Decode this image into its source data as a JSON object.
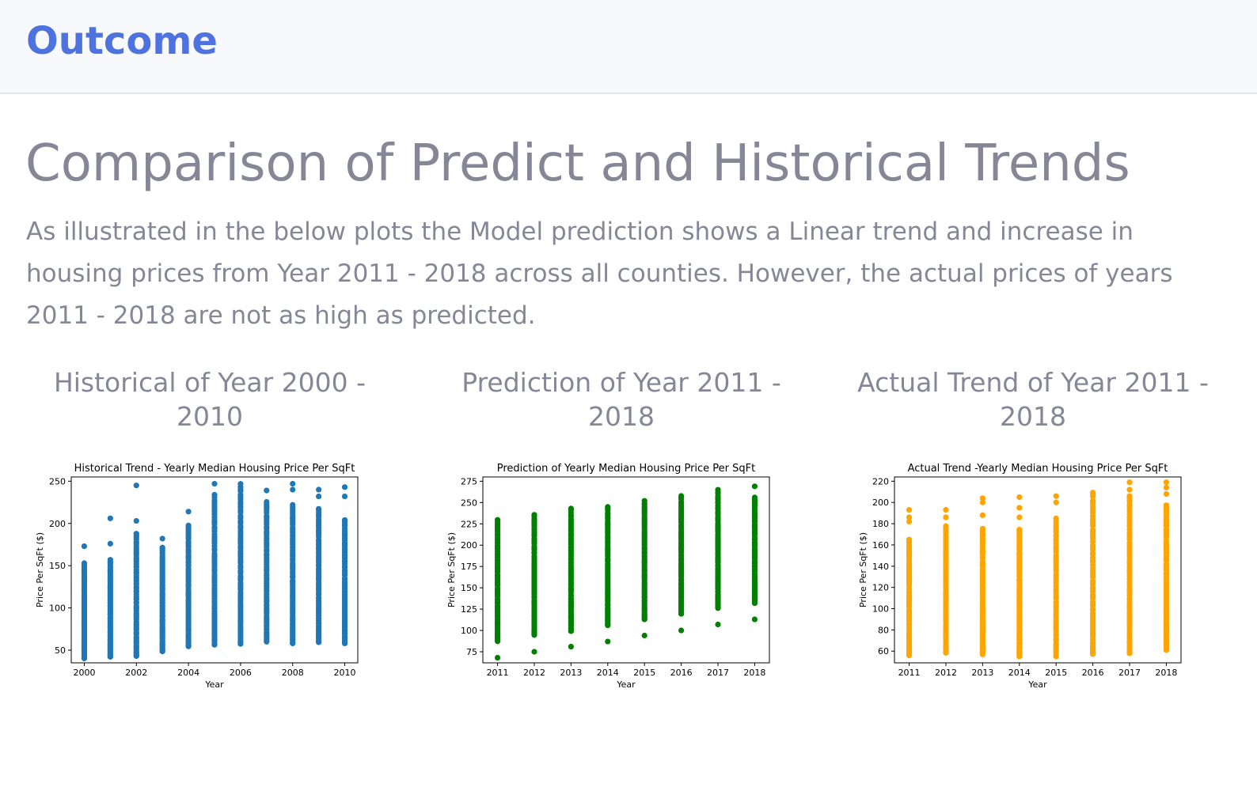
{
  "header": {
    "brand": "Outcome"
  },
  "main": {
    "title": "Comparison of Predict and Historical Trends",
    "description": "As illustrated in the below plots the Model prediction shows a Linear trend and increase in housing prices from Year 2011 - 2018 across all counties. However, the actual prices of years 2011 - 2018 are not as high as predicted.",
    "panels": [
      {
        "heading": "Historical of Year 2000 - 2010"
      },
      {
        "heading": "Prediction of Year 2011 - 2018"
      },
      {
        "heading": "Actual Trend of Year 2011 - 2018"
      }
    ]
  },
  "chart_data": [
    {
      "type": "scatter",
      "title": "Historical Trend - Yearly Median Housing Price Per SqFt",
      "xlabel": "Year",
      "ylabel": "Price Per SqFt ($)",
      "xlim": [
        1999.5,
        2010.5
      ],
      "ylim": [
        35,
        255
      ],
      "xticks": [
        2000,
        2002,
        2004,
        2006,
        2008,
        2010
      ],
      "yticks": [
        50,
        100,
        150,
        200,
        250
      ],
      "color": "#1f77b4",
      "series": [
        {
          "x": 2000,
          "min": 40,
          "max": 153,
          "extra": [
            173
          ]
        },
        {
          "x": 2001,
          "min": 42,
          "max": 157,
          "extra": [
            176,
            206
          ]
        },
        {
          "x": 2002,
          "min": 43,
          "max": 188,
          "extra": [
            203,
            245
          ]
        },
        {
          "x": 2003,
          "min": 48,
          "max": 172,
          "extra": [
            182
          ]
        },
        {
          "x": 2004,
          "min": 54,
          "max": 198,
          "extra": [
            214
          ]
        },
        {
          "x": 2005,
          "min": 56,
          "max": 234,
          "extra": [
            247
          ]
        },
        {
          "x": 2006,
          "min": 57,
          "max": 247,
          "extra": []
        },
        {
          "x": 2007,
          "min": 60,
          "max": 226,
          "extra": [
            239
          ]
        },
        {
          "x": 2008,
          "min": 58,
          "max": 222,
          "extra": [
            240,
            247
          ]
        },
        {
          "x": 2009,
          "min": 59,
          "max": 218,
          "extra": [
            232,
            240
          ]
        },
        {
          "x": 2010,
          "min": 58,
          "max": 204,
          "extra": [
            232,
            243
          ]
        }
      ]
    },
    {
      "type": "scatter",
      "title": "Prediction of Yearly Median Housing Price Per SqFt",
      "xlabel": "Year",
      "ylabel": "Price Per SqFt ($)",
      "xlim": [
        2010.6,
        2018.4
      ],
      "ylim": [
        62,
        280
      ],
      "xticks": [
        2011,
        2012,
        2013,
        2014,
        2015,
        2016,
        2017,
        2018
      ],
      "yticks": [
        75,
        100,
        125,
        150,
        175,
        200,
        225,
        250,
        275
      ],
      "color": "#008000",
      "series": [
        {
          "x": 2011,
          "min": 87,
          "max": 230,
          "extra": [
            68
          ]
        },
        {
          "x": 2012,
          "min": 94,
          "max": 236,
          "extra": [
            75
          ]
        },
        {
          "x": 2013,
          "min": 99,
          "max": 243,
          "extra": [
            81
          ]
        },
        {
          "x": 2014,
          "min": 106,
          "max": 245,
          "extra": [
            87
          ]
        },
        {
          "x": 2015,
          "min": 113,
          "max": 252,
          "extra": [
            94
          ]
        },
        {
          "x": 2016,
          "min": 119,
          "max": 258,
          "extra": [
            100
          ]
        },
        {
          "x": 2017,
          "min": 126,
          "max": 265,
          "extra": [
            107
          ]
        },
        {
          "x": 2018,
          "min": 132,
          "max": 256,
          "extra": [
            113,
            269
          ]
        }
      ]
    },
    {
      "type": "scatter",
      "title": "Actual Trend -Yearly Median Housing Price Per SqFt",
      "xlabel": "Year",
      "ylabel": "Price Per SqFt ($)",
      "xlim": [
        2010.6,
        2018.4
      ],
      "ylim": [
        49,
        224
      ],
      "xticks": [
        2011,
        2012,
        2013,
        2014,
        2015,
        2016,
        2017,
        2018
      ],
      "yticks": [
        60,
        80,
        100,
        120,
        140,
        160,
        180,
        200,
        220
      ],
      "color": "#ffa500",
      "series": [
        {
          "x": 2011,
          "min": 56,
          "max": 165,
          "extra": [
            182,
            186,
            193
          ]
        },
        {
          "x": 2012,
          "min": 58,
          "max": 178,
          "extra": [
            186,
            193
          ]
        },
        {
          "x": 2013,
          "min": 57,
          "max": 176,
          "extra": [
            188,
            200,
            204
          ]
        },
        {
          "x": 2014,
          "min": 55,
          "max": 175,
          "extra": [
            186,
            195,
            205
          ]
        },
        {
          "x": 2015,
          "min": 55,
          "max": 185,
          "extra": [
            200,
            206
          ]
        },
        {
          "x": 2016,
          "min": 57,
          "max": 210,
          "extra": []
        },
        {
          "x": 2017,
          "min": 58,
          "max": 206,
          "extra": [
            212,
            219
          ]
        },
        {
          "x": 2018,
          "min": 61,
          "max": 198,
          "extra": [
            208,
            214,
            219
          ]
        }
      ]
    }
  ]
}
